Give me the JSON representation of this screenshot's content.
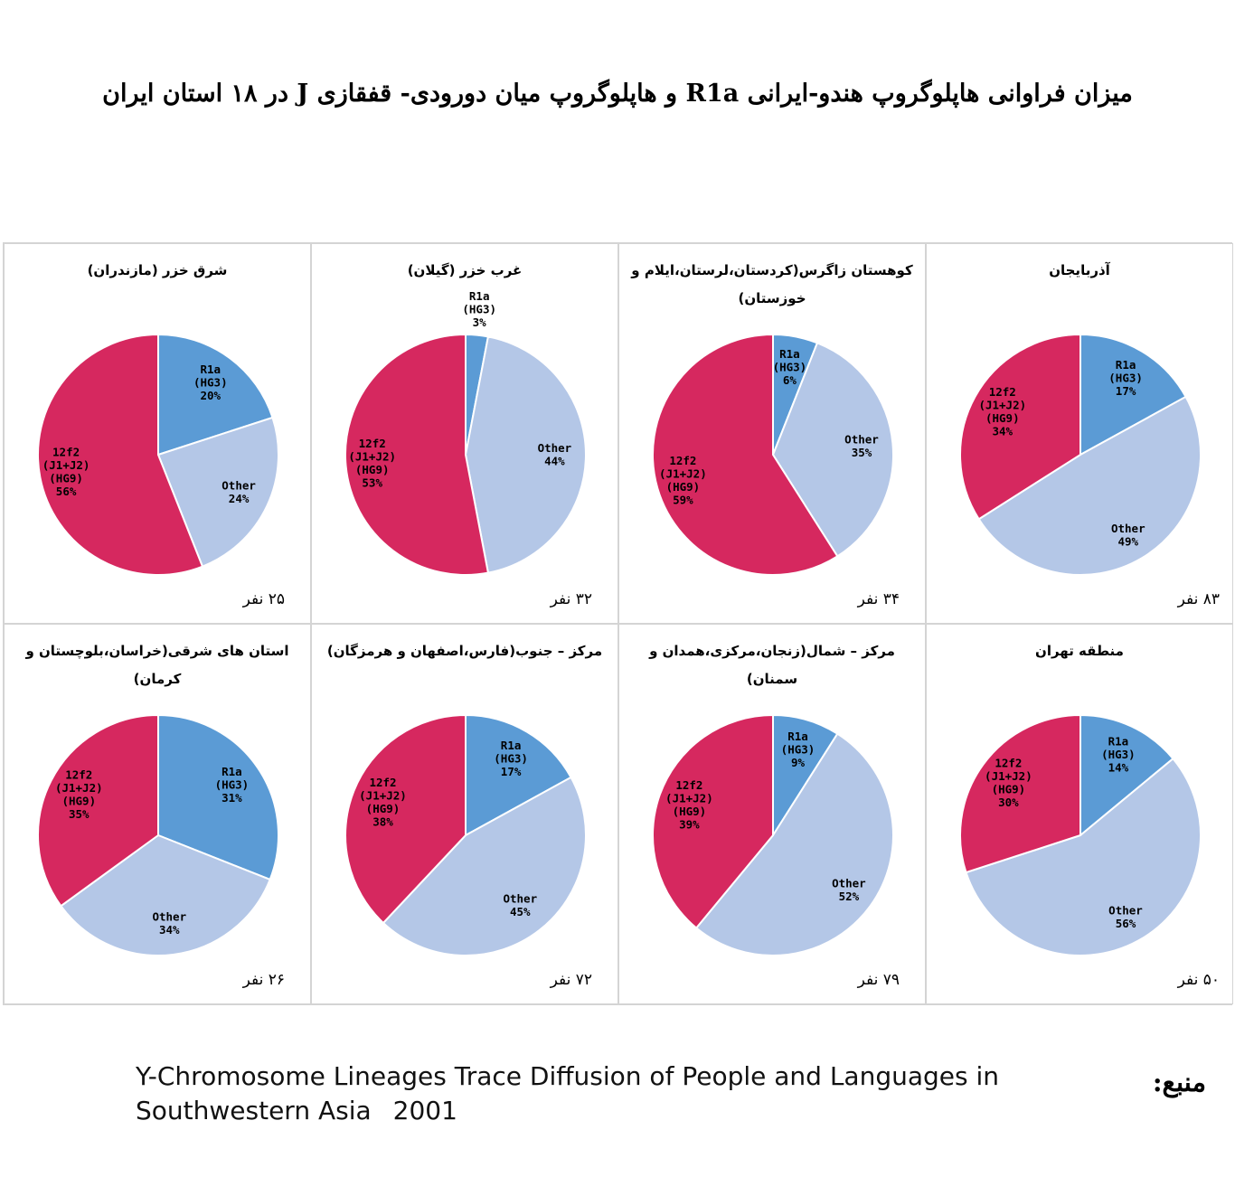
{
  "title": "میزان فراوانی هاپلوگروپ هندو-ایرانی R1a و هاپلوگروپ میان دورودی- قفقازی J در ۱۸ استان ایران",
  "colors": {
    "R1a": "#5b9bd5",
    "Other": "#b4c7e7",
    "J": "#d6285f"
  },
  "chart_data": [
    {
      "type": "pie",
      "title": "آذربایجان",
      "footer": "۸۳ نفر",
      "slices": [
        {
          "label": [
            "R1a",
            "(HG3)"
          ],
          "value": 17,
          "pct": "17%",
          "color": "#5b9bd5"
        },
        {
          "label": [
            "Other"
          ],
          "value": 49,
          "pct": "49%",
          "color": "#b4c7e7"
        },
        {
          "label": [
            "12f2",
            "(J1+J2)",
            "(HG9)"
          ],
          "value": 34,
          "pct": "34%",
          "color": "#d6285f"
        }
      ]
    },
    {
      "type": "pie",
      "title": "کوهستان زاگرس(کردستان،لرستان،ایلام و خوزستان)",
      "footer": "۳۴ نفر",
      "slices": [
        {
          "label": [
            "R1a",
            "(HG3)"
          ],
          "value": 6,
          "pct": "6%",
          "color": "#5b9bd5"
        },
        {
          "label": [
            "Other"
          ],
          "value": 35,
          "pct": "35%",
          "color": "#b4c7e7"
        },
        {
          "label": [
            "12f2",
            "(J1+J2)",
            "(HG9)"
          ],
          "value": 59,
          "pct": "59%",
          "color": "#d6285f"
        }
      ]
    },
    {
      "type": "pie",
      "title": "غرب خزر (گیلان)",
      "footer": "۳۲ نفر",
      "slices": [
        {
          "label": [
            "R1a",
            "(HG3)"
          ],
          "value": 3,
          "pct": "3%",
          "color": "#5b9bd5"
        },
        {
          "label": [
            "Other"
          ],
          "value": 44,
          "pct": "44%",
          "color": "#b4c7e7"
        },
        {
          "label": [
            "12f2",
            "(J1+J2)",
            "(HG9)"
          ],
          "value": 53,
          "pct": "53%",
          "color": "#d6285f"
        }
      ]
    },
    {
      "type": "pie",
      "title": "شرق خزر (مازندران)",
      "footer": "۲۵ نفر",
      "slices": [
        {
          "label": [
            "R1a",
            "(HG3)"
          ],
          "value": 20,
          "pct": "20%",
          "color": "#5b9bd5"
        },
        {
          "label": [
            "Other"
          ],
          "value": 24,
          "pct": "24%",
          "color": "#b4c7e7"
        },
        {
          "label": [
            "12f2",
            "(J1+J2)",
            "(HG9)"
          ],
          "value": 56,
          "pct": "56%",
          "color": "#d6285f"
        }
      ]
    },
    {
      "type": "pie",
      "title": "منطقه تهران",
      "footer": "۵۰ نفر",
      "slices": [
        {
          "label": [
            "R1a",
            "(HG3)"
          ],
          "value": 14,
          "pct": "14%",
          "color": "#5b9bd5"
        },
        {
          "label": [
            "Other"
          ],
          "value": 56,
          "pct": "56%",
          "color": "#b4c7e7"
        },
        {
          "label": [
            "12f2",
            "(J1+J2)",
            "(HG9)"
          ],
          "value": 30,
          "pct": "30%",
          "color": "#d6285f"
        }
      ]
    },
    {
      "type": "pie",
      "title": "مرکز – شمال(زنجان،مرکزی،همدان و سمنان)",
      "footer": "۷۹ نفر",
      "slices": [
        {
          "label": [
            "R1a",
            "(HG3)"
          ],
          "value": 9,
          "pct": "9%",
          "color": "#5b9bd5"
        },
        {
          "label": [
            "Other"
          ],
          "value": 52,
          "pct": "52%",
          "color": "#b4c7e7"
        },
        {
          "label": [
            "12f2",
            "(J1+J2)",
            "(HG9)"
          ],
          "value": 39,
          "pct": "39%",
          "color": "#d6285f"
        }
      ]
    },
    {
      "type": "pie",
      "title": "مرکز – جنوب(فارس،اصفهان و هرمزگان)",
      "footer": "۷۲ نفر",
      "slices": [
        {
          "label": [
            "R1a",
            "(HG3)"
          ],
          "value": 17,
          "pct": "17%",
          "color": "#5b9bd5"
        },
        {
          "label": [
            "Other"
          ],
          "value": 45,
          "pct": "45%",
          "color": "#b4c7e7"
        },
        {
          "label": [
            "12f2",
            "(J1+J2)",
            "(HG9)"
          ],
          "value": 38,
          "pct": "38%",
          "color": "#d6285f"
        }
      ]
    },
    {
      "type": "pie",
      "title": "استان های شرقی(خراسان،بلوچستان و کرمان)",
      "footer": "۲۶ نفر",
      "slices": [
        {
          "label": [
            "R1a",
            "(HG3)"
          ],
          "value": 31,
          "pct": "31%",
          "color": "#5b9bd5"
        },
        {
          "label": [
            "Other"
          ],
          "value": 34,
          "pct": "34%",
          "color": "#b4c7e7"
        },
        {
          "label": [
            "12f2",
            "(J1+J2)",
            "(HG9)"
          ],
          "value": 35,
          "pct": "35%",
          "color": "#d6285f"
        }
      ]
    }
  ],
  "source": {
    "label": "منبع:",
    "text_line1": "Y-Chromosome Lineages Trace Diffusion of People and Languages in",
    "text_line2": "Southwestern Asia",
    "year": "2001"
  }
}
